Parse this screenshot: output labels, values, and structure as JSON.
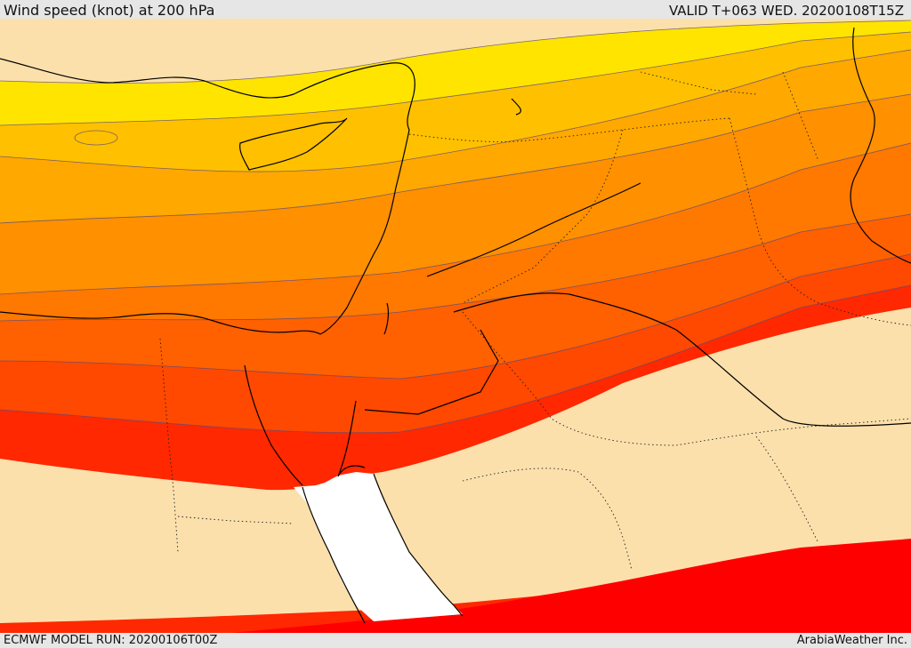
{
  "header": {
    "title": "Wind speed (knot) at 200 hPa",
    "valid": "VALID T+063 WED. 20200108T15Z"
  },
  "footer": {
    "model_run": "ECMWF MODEL RUN: 20200106T00Z",
    "credit": "ArabiaWeather Inc."
  },
  "map": {
    "field": "wind speed",
    "units": "knot",
    "level_hpa": 200,
    "band_colors": [
      "#ffe400",
      "#ffc000",
      "#ffa800",
      "#ff9000",
      "#ff7800",
      "#ff6000",
      "#ff4800",
      "#ff2800",
      "#ff0000",
      "#fce0ac",
      "#ffffff"
    ]
  }
}
